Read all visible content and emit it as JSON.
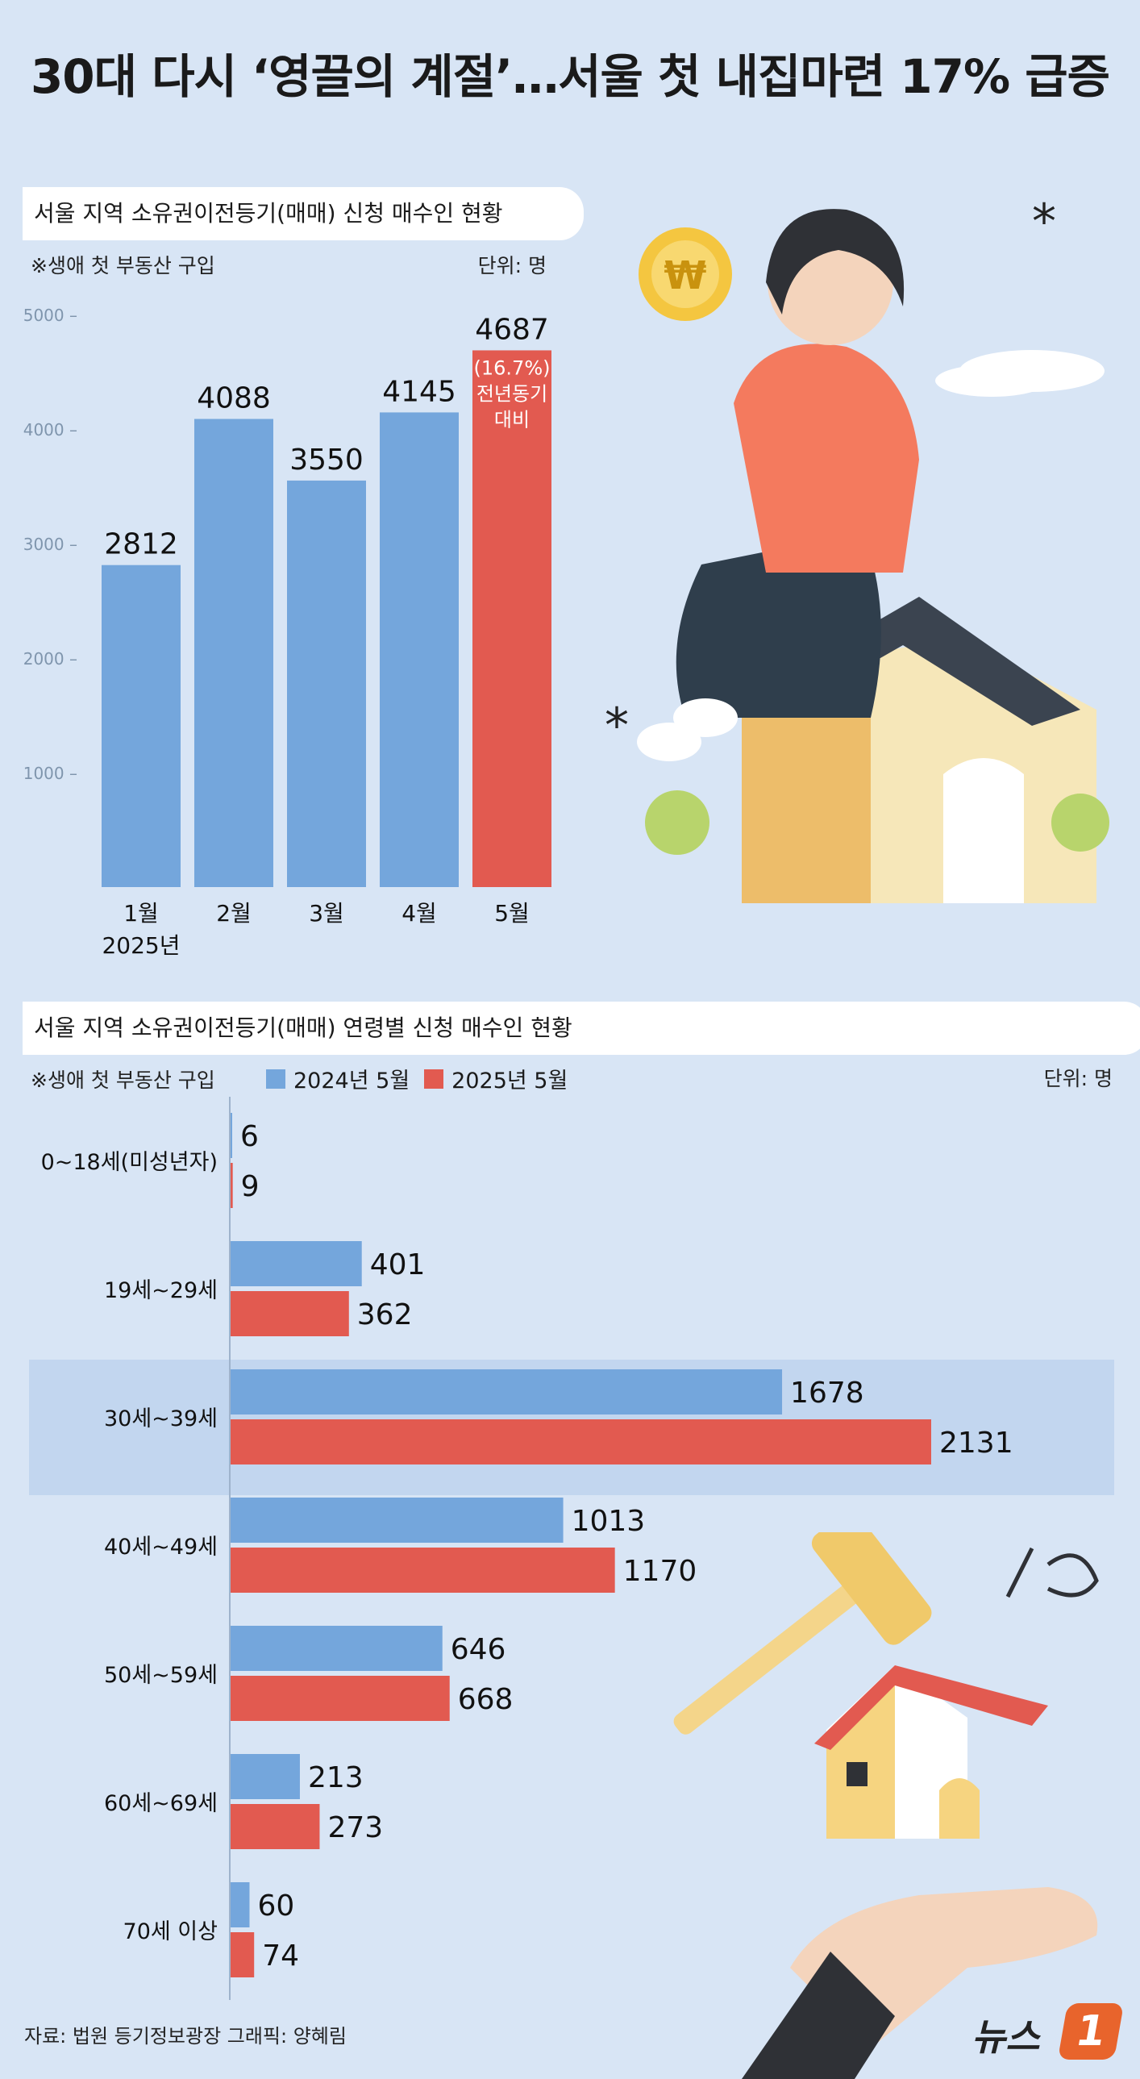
{
  "title": "30대 다시 ‘영끌의 계절’…서울 첫 내집마련 17% 급증",
  "colors": {
    "blue": "#74a6dc",
    "red": "#e25a50",
    "bg": "#d8e5f5"
  },
  "chart1": {
    "heading": "서울 지역 소유권이전등기(매매) 신청 매수인 현황",
    "note": "※생애 첫 부동산 구입",
    "unit": "단위: 명",
    "annotation": [
      "(16.7%)",
      "전년동기",
      "대비"
    ],
    "year_label": "2025년"
  },
  "chart2": {
    "heading": "서울 지역 소유권이전등기(매매) 연령별 신청 매수인 현황",
    "note": "※생애 첫 부동산 구입",
    "legend": [
      "2024년 5월",
      "2025년 5월"
    ],
    "unit": "단위: 명"
  },
  "footer": "자료: 법원 등기정보광장   그래픽: 양혜림",
  "logo": {
    "text": "뉴스",
    "badge": "1"
  },
  "chart_data": [
    {
      "type": "bar",
      "title": "서울 지역 소유권이전등기(매매) 신청 매수인 현황",
      "categories": [
        "1월",
        "2월",
        "3월",
        "4월",
        "5월"
      ],
      "values": [
        2812,
        4088,
        3550,
        4145,
        4687
      ],
      "ylim": [
        0,
        5000
      ],
      "yticks": [
        1000,
        2000,
        3000,
        4000,
        5000
      ],
      "highlight_index": 4,
      "grid": false
    },
    {
      "type": "bar",
      "orientation": "horizontal",
      "title": "서울 지역 소유권이전등기(매매) 연령별 신청 매수인 현황",
      "categories": [
        "0~18세(미성년자)",
        "19세~29세",
        "30세~39세",
        "40세~49세",
        "50세~59세",
        "60세~69세",
        "70세 이상"
      ],
      "series": [
        {
          "name": "2024년 5월",
          "values": [
            6,
            401,
            1678,
            1013,
            646,
            213,
            60
          ]
        },
        {
          "name": "2025년 5월",
          "values": [
            9,
            362,
            2131,
            1170,
            668,
            273,
            74
          ]
        }
      ],
      "highlight_index": 2,
      "legend": "top-left"
    }
  ]
}
